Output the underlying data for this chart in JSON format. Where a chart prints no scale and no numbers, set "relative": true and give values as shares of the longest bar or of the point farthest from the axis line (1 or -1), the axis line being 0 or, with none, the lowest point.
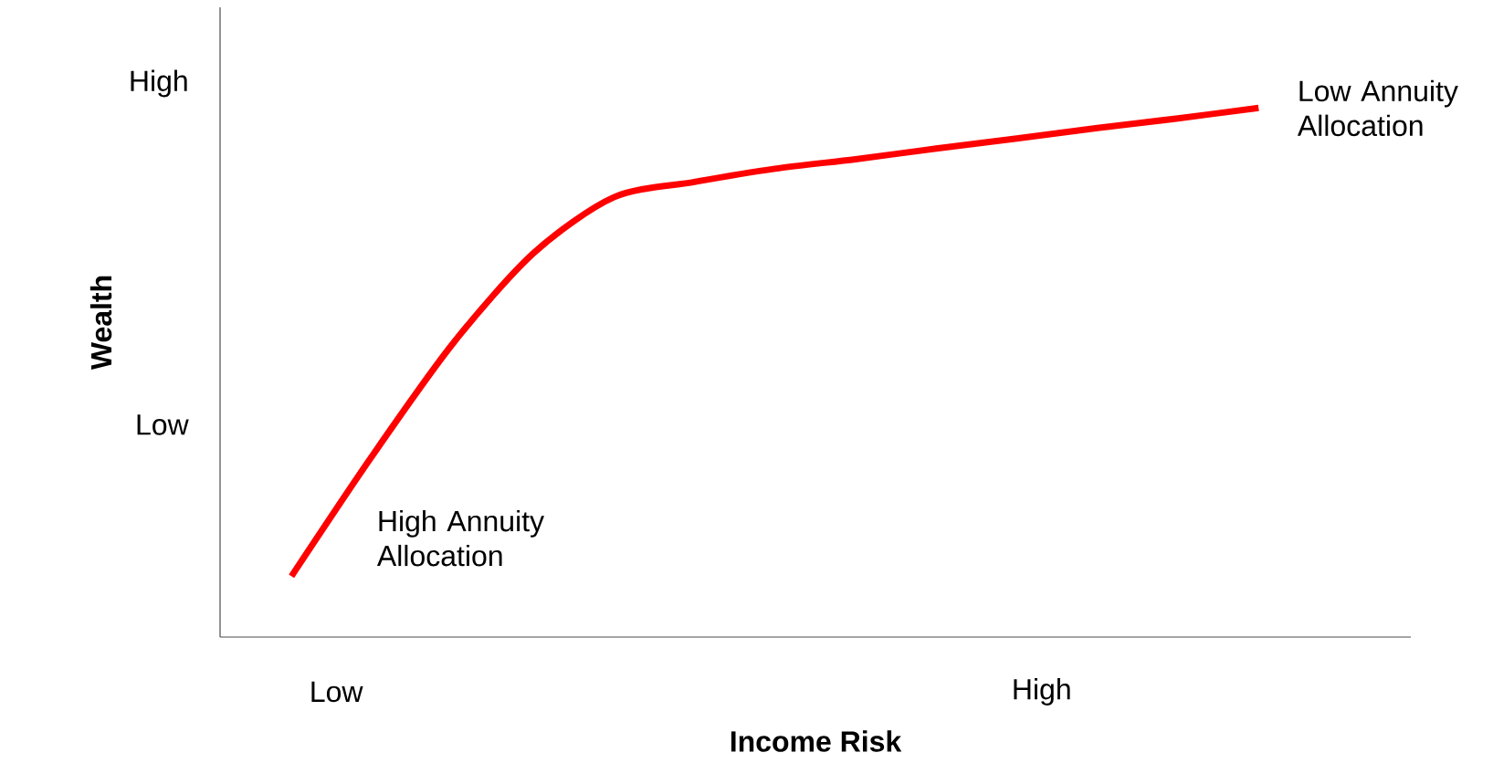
{
  "chart_data": {
    "type": "line",
    "relative": true,
    "xlabel": "Income Risk",
    "ylabel": "Wealth",
    "categories": [
      null,
      null,
      null,
      null,
      null,
      null,
      null,
      null,
      null,
      null,
      null,
      null,
      null
    ],
    "series": [
      {
        "color": "#ff0000",
        "values": [
          0.115,
          0.342,
          0.554,
          0.725,
          0.831,
          0.86,
          0.885,
          0.903,
          0.923,
          0.942,
          0.962,
          0.98,
          1
        ]
      }
    ],
    "annotations": [
      "High Annuity Allocation",
      "Low Annuity Allocation",
      "Low",
      "High",
      "Low",
      "High"
    ]
  }
}
